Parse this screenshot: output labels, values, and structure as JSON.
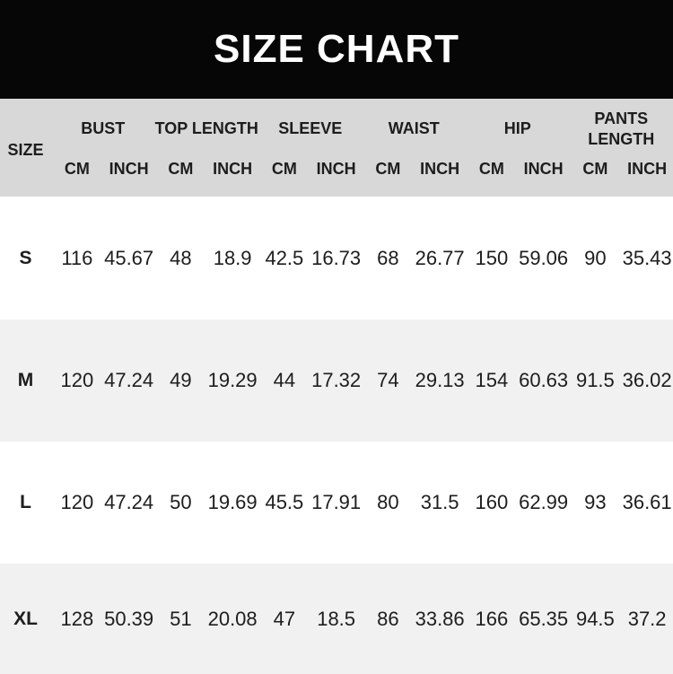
{
  "header": {
    "title": "SIZE CHART"
  },
  "colors": {
    "title_bar_bg": "#060606",
    "title_text": "#ffffff",
    "table_header_bg": "#d8d8d8",
    "row_alt_bg": "#f1f1f1",
    "row_bg": "#ffffff",
    "text": "#1d1d1d"
  },
  "chart_data": {
    "type": "table",
    "title": "SIZE CHART",
    "size_column_header": "SIZE",
    "groups": [
      "BUST",
      "TOP LENGTH",
      "SLEEVE",
      "WAIST",
      "HIP",
      "PANTS LENGTH"
    ],
    "units": [
      "CM",
      "INCH",
      "CM",
      "INCH",
      "CM",
      "INCH",
      "CM",
      "INCH",
      "CM",
      "INCH",
      "CM",
      "INCH"
    ],
    "rows": [
      {
        "size": "S",
        "values": [
          "116",
          "45.67",
          "48",
          "18.9",
          "42.5",
          "16.73",
          "68",
          "26.77",
          "150",
          "59.06",
          "90",
          "35.43"
        ]
      },
      {
        "size": "M",
        "values": [
          "120",
          "47.24",
          "49",
          "19.29",
          "44",
          "17.32",
          "74",
          "29.13",
          "154",
          "60.63",
          "91.5",
          "36.02"
        ]
      },
      {
        "size": "L",
        "values": [
          "120",
          "47.24",
          "50",
          "19.69",
          "45.5",
          "17.91",
          "80",
          "31.5",
          "160",
          "62.99",
          "93",
          "36.61"
        ]
      },
      {
        "size": "XL",
        "values": [
          "128",
          "50.39",
          "51",
          "20.08",
          "47",
          "18.5",
          "86",
          "33.86",
          "166",
          "65.35",
          "94.5",
          "37.2"
        ]
      }
    ]
  }
}
